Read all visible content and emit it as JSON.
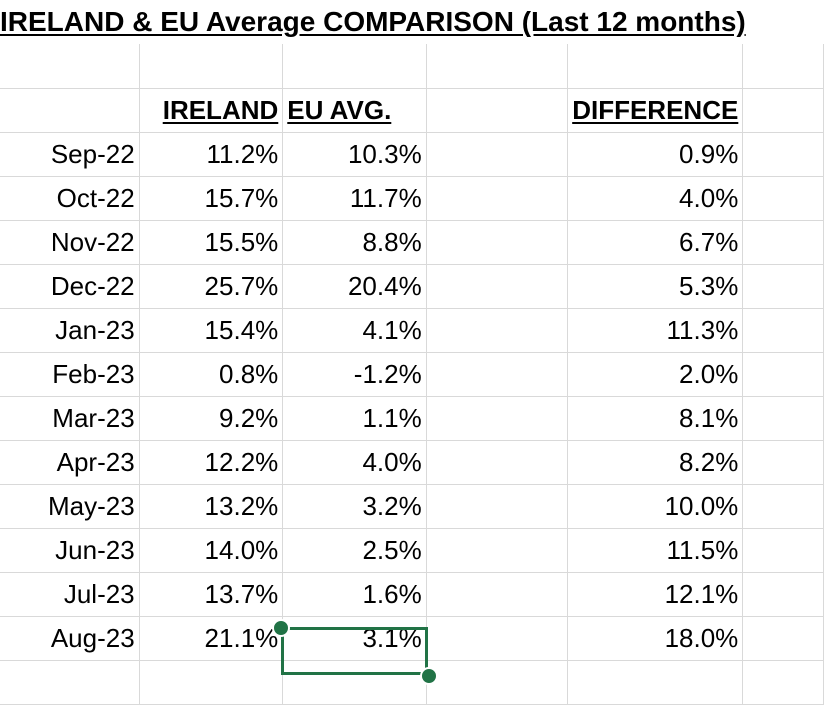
{
  "title": "IRELAND & EU Average COMPARISON (Last 12 months)",
  "headers": {
    "ireland": "IRELAND",
    "eu": "EU AVG.",
    "difference": "DIFFERENCE"
  },
  "rows": [
    {
      "month": "Sep-22",
      "ireland": "11.2%",
      "eu": "10.3%",
      "difference": "0.9%"
    },
    {
      "month": "Oct-22",
      "ireland": "15.7%",
      "eu": "11.7%",
      "difference": "4.0%"
    },
    {
      "month": "Nov-22",
      "ireland": "15.5%",
      "eu": "8.8%",
      "difference": "6.7%"
    },
    {
      "month": "Dec-22",
      "ireland": "25.7%",
      "eu": "20.4%",
      "difference": "5.3%"
    },
    {
      "month": "Jan-23",
      "ireland": "15.4%",
      "eu": "4.1%",
      "difference": "11.3%"
    },
    {
      "month": "Feb-23",
      "ireland": "0.8%",
      "eu": "-1.2%",
      "difference": "2.0%"
    },
    {
      "month": "Mar-23",
      "ireland": "9.2%",
      "eu": "1.1%",
      "difference": "8.1%"
    },
    {
      "month": "Apr-23",
      "ireland": "12.2%",
      "eu": "4.0%",
      "difference": "8.2%"
    },
    {
      "month": "May-23",
      "ireland": "13.2%",
      "eu": "3.2%",
      "difference": "10.0%"
    },
    {
      "month": "Jun-23",
      "ireland": "14.0%",
      "eu": "2.5%",
      "difference": "11.5%"
    },
    {
      "month": "Jul-23",
      "ireland": "13.7%",
      "eu": "1.6%",
      "difference": "12.1%"
    },
    {
      "month": "Aug-23",
      "ireland": "21.1%",
      "eu": "3.1%",
      "difference": "18.0%"
    }
  ],
  "selection_color": "#217346"
}
